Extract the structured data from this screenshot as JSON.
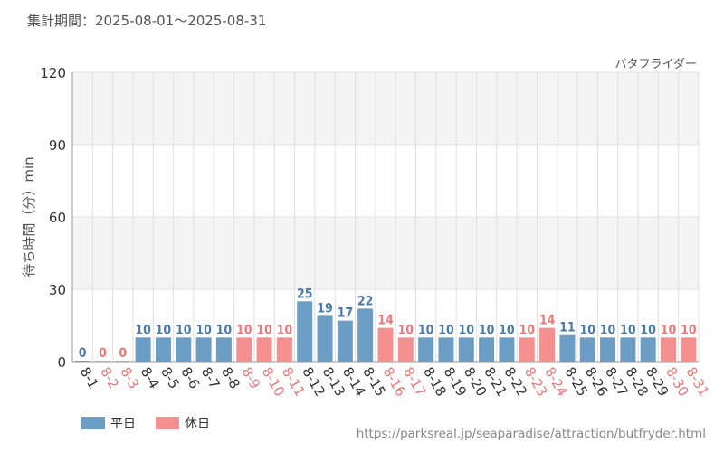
{
  "header": {
    "period_label": "集計期間：",
    "period_range": "2025-08-01～2025-08-31"
  },
  "attraction_name": "バタフライダー",
  "legend": {
    "weekday_label": "平日",
    "holiday_label": "休日"
  },
  "source_url": "https://parksreal.jp/seaparadise/attraction/butfryder.html",
  "colors": {
    "weekday": "#6b9dc5",
    "holiday": "#f49090",
    "weekday_text": "#4a7aa6",
    "holiday_text": "#ee7777",
    "band": "#f4f4f4",
    "grid": "#e0e0e0"
  },
  "chart_data": {
    "type": "bar",
    "ylabel": "待ち時間（分）min",
    "ylim": [
      0,
      120
    ],
    "yticks": [
      0,
      30,
      60,
      90,
      120
    ],
    "grid": true,
    "legend_position": "bottom-left",
    "categories": [
      "8-1",
      "8-2",
      "8-3",
      "8-4",
      "8-5",
      "8-6",
      "8-7",
      "8-8",
      "8-9",
      "8-10",
      "8-11",
      "8-12",
      "8-13",
      "8-14",
      "8-15",
      "8-16",
      "8-17",
      "8-18",
      "8-19",
      "8-20",
      "8-21",
      "8-22",
      "8-23",
      "8-24",
      "8-25",
      "8-26",
      "8-27",
      "8-28",
      "8-29",
      "8-30",
      "8-31"
    ],
    "values": [
      0,
      0,
      0,
      10,
      10,
      10,
      10,
      10,
      10,
      10,
      10,
      25,
      19,
      17,
      22,
      14,
      10,
      10,
      10,
      10,
      10,
      10,
      10,
      14,
      11,
      10,
      10,
      10,
      10,
      10,
      10
    ],
    "day_type": [
      "平日",
      "休日",
      "休日",
      "平日",
      "平日",
      "平日",
      "平日",
      "平日",
      "休日",
      "休日",
      "休日",
      "平日",
      "平日",
      "平日",
      "平日",
      "休日",
      "休日",
      "平日",
      "平日",
      "平日",
      "平日",
      "平日",
      "休日",
      "休日",
      "平日",
      "平日",
      "平日",
      "平日",
      "平日",
      "休日",
      "休日"
    ],
    "series": [
      {
        "name": "平日"
      },
      {
        "name": "休日"
      }
    ]
  }
}
